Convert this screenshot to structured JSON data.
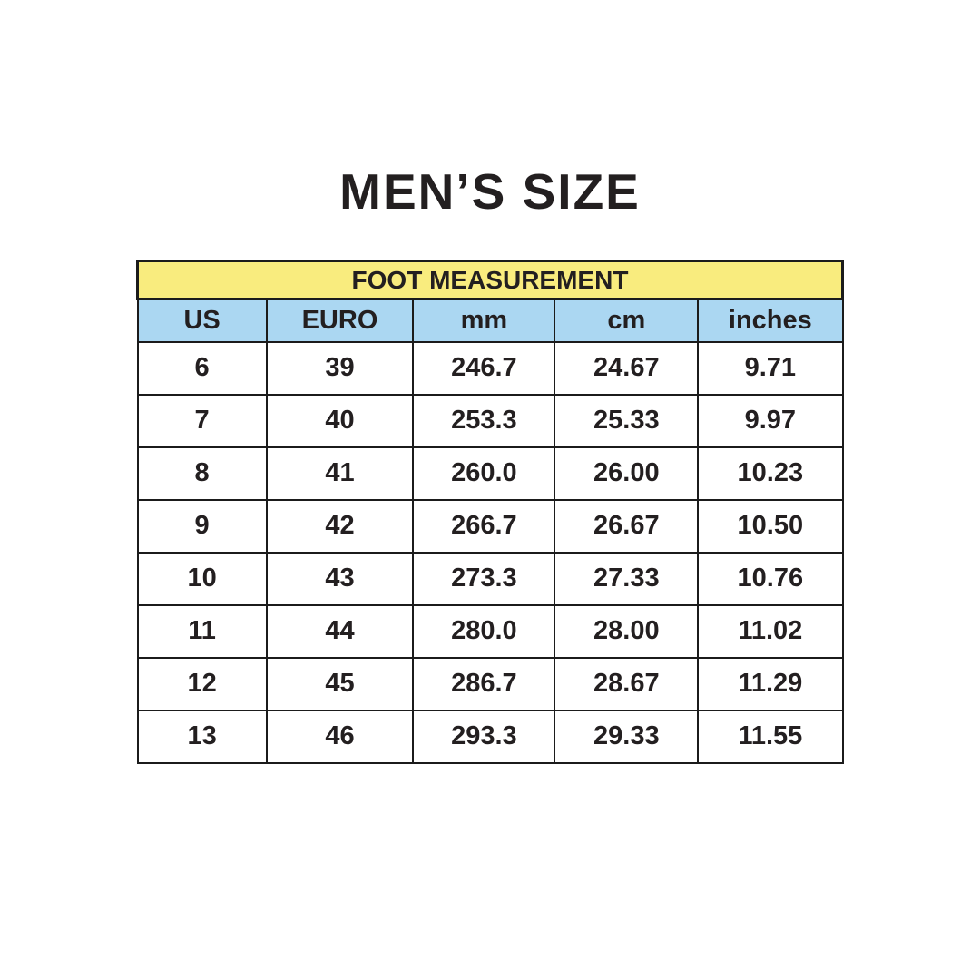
{
  "title": "MEN’S SIZE",
  "colors": {
    "header_yellow": "#F9EC7E",
    "header_blue": "#ABD7F2",
    "border": "#1B1B1B",
    "text": "#231F20",
    "background": "#FFFFFF"
  },
  "chart_data": {
    "type": "table",
    "title": "FOOT MEASUREMENT",
    "columns": [
      "US",
      "EURO",
      "mm",
      "cm",
      "inches"
    ],
    "rows": [
      [
        "6",
        "39",
        "246.7",
        "24.67",
        "9.71"
      ],
      [
        "7",
        "40",
        "253.3",
        "25.33",
        "9.97"
      ],
      [
        "8",
        "41",
        "260.0",
        "26.00",
        "10.23"
      ],
      [
        "9",
        "42",
        "266.7",
        "26.67",
        "10.50"
      ],
      [
        "10",
        "43",
        "273.3",
        "27.33",
        "10.76"
      ],
      [
        "11",
        "44",
        "280.0",
        "28.00",
        "11.02"
      ],
      [
        "12",
        "45",
        "286.7",
        "28.67",
        "11.29"
      ],
      [
        "13",
        "46",
        "293.3",
        "29.33",
        "11.55"
      ]
    ]
  }
}
